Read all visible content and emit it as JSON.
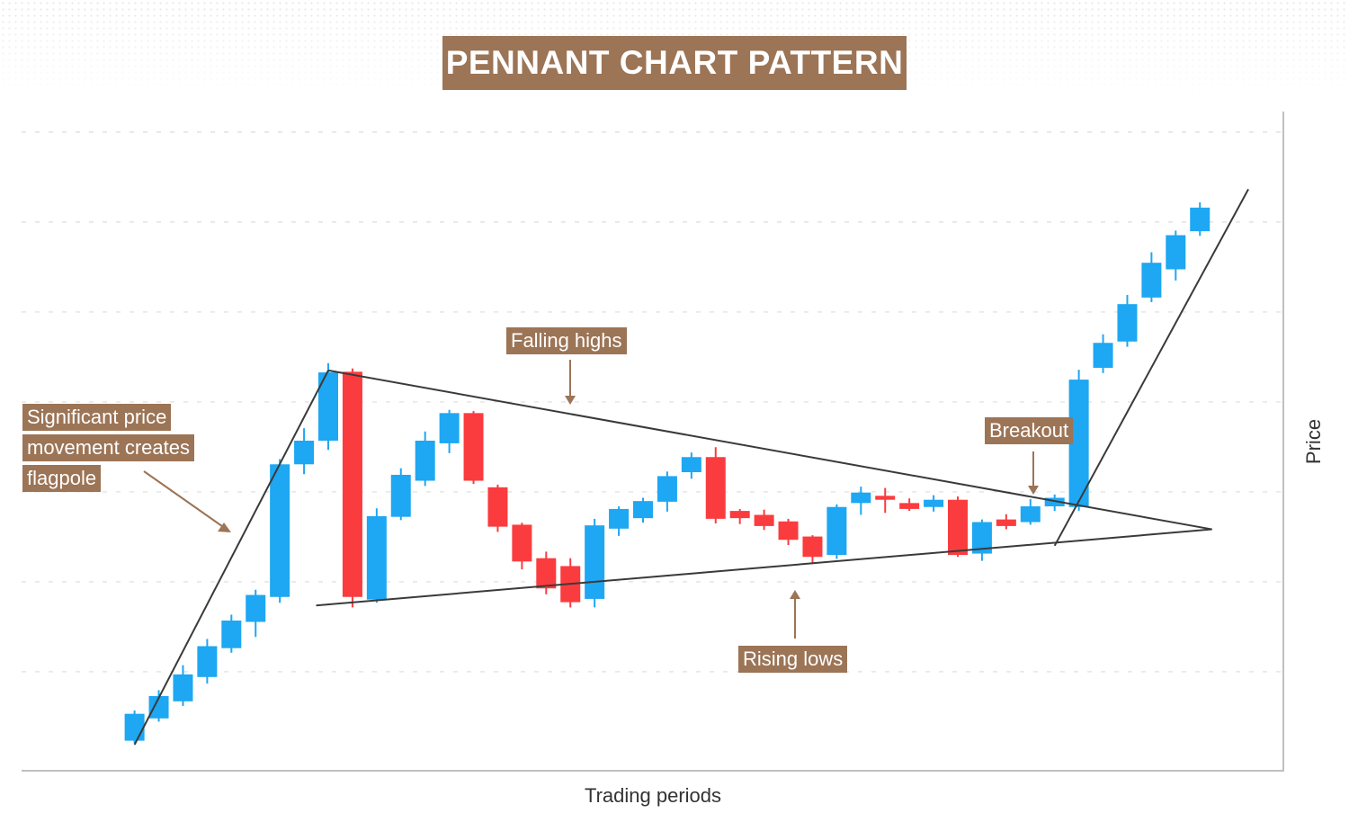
{
  "title": "PENNANT CHART PATTERN",
  "annotations": {
    "flagpole": [
      "Significant price",
      "movement creates",
      "flagpole"
    ],
    "falling_highs": "Falling highs",
    "rising_lows": "Rising lows",
    "breakout": "Breakout"
  },
  "colors": {
    "bullish": "#1ea7f2",
    "bearish": "#fa3c3f",
    "label_bg": "#9c7456",
    "trendline": "#3a3a3a",
    "grid": "#dcdcdc"
  },
  "chart_data": {
    "type": "candlestick",
    "xlabel": "Trading periods",
    "ylabel": "Price",
    "x_range": [
      0,
      52
    ],
    "y_range": [
      0,
      100
    ],
    "grid": "horizontal dashed",
    "candles": [
      {
        "x": 5,
        "open": 4.3,
        "close": 8.4,
        "high": 8.9,
        "low": 3.9
      },
      {
        "x": 6,
        "open": 7.7,
        "close": 11.1,
        "high": 12.0,
        "low": 7.2
      },
      {
        "x": 7,
        "open": 10.3,
        "close": 14.4,
        "high": 15.8,
        "low": 9.6
      },
      {
        "x": 8,
        "open": 14.0,
        "close": 18.7,
        "high": 19.8,
        "low": 13.0
      },
      {
        "x": 9,
        "open": 18.4,
        "close": 22.6,
        "high": 23.5,
        "low": 17.7
      },
      {
        "x": 10,
        "open": 22.4,
        "close": 26.5,
        "high": 27.3,
        "low": 20.1
      },
      {
        "x": 11,
        "open": 26.2,
        "close": 46.4,
        "high": 47.2,
        "low": 25.3
      },
      {
        "x": 12,
        "open": 46.4,
        "close": 50.0,
        "high": 51.9,
        "low": 44.9
      },
      {
        "x": 13,
        "open": 50.0,
        "close": 60.4,
        "high": 61.8,
        "low": 48.6
      },
      {
        "x": 14,
        "open": 60.5,
        "close": 26.2,
        "high": 61.0,
        "low": 24.6
      },
      {
        "x": 15,
        "open": 25.8,
        "close": 38.5,
        "high": 39.7,
        "low": 25.3
      },
      {
        "x": 16,
        "open": 38.4,
        "close": 44.8,
        "high": 45.8,
        "low": 37.9
      },
      {
        "x": 17,
        "open": 43.9,
        "close": 50.0,
        "high": 51.4,
        "low": 43.1
      },
      {
        "x": 18,
        "open": 49.6,
        "close": 54.2,
        "high": 54.7,
        "low": 48.1
      },
      {
        "x": 19,
        "open": 54.2,
        "close": 43.9,
        "high": 54.5,
        "low": 43.4
      },
      {
        "x": 20,
        "open": 42.9,
        "close": 36.9,
        "high": 43.3,
        "low": 36.1
      },
      {
        "x": 21,
        "open": 37.2,
        "close": 31.6,
        "high": 37.5,
        "low": 30.4
      },
      {
        "x": 22,
        "open": 32.1,
        "close": 27.5,
        "high": 33.1,
        "low": 26.6
      },
      {
        "x": 23,
        "open": 30.9,
        "close": 25.4,
        "high": 32.1,
        "low": 24.6
      },
      {
        "x": 24,
        "open": 25.9,
        "close": 37.1,
        "high": 38.1,
        "low": 24.6
      },
      {
        "x": 25,
        "open": 36.6,
        "close": 39.6,
        "high": 40.0,
        "low": 35.5
      },
      {
        "x": 26,
        "open": 38.2,
        "close": 40.8,
        "high": 41.3,
        "low": 37.5
      },
      {
        "x": 27,
        "open": 40.7,
        "close": 44.6,
        "high": 45.3,
        "low": 39.2
      },
      {
        "x": 28,
        "open": 45.2,
        "close": 47.5,
        "high": 48.2,
        "low": 44.2
      },
      {
        "x": 29,
        "open": 47.5,
        "close": 38.1,
        "high": 49.0,
        "low": 37.4
      },
      {
        "x": 30,
        "open": 39.3,
        "close": 38.2,
        "high": 39.6,
        "low": 37.3
      },
      {
        "x": 31,
        "open": 38.7,
        "close": 37.0,
        "high": 39.5,
        "low": 36.4
      },
      {
        "x": 32,
        "open": 37.7,
        "close": 34.9,
        "high": 38.1,
        "low": 34.1
      },
      {
        "x": 33,
        "open": 35.4,
        "close": 32.3,
        "high": 35.6,
        "low": 31.2
      },
      {
        "x": 34,
        "open": 32.6,
        "close": 39.9,
        "high": 40.3,
        "low": 32.0
      },
      {
        "x": 35,
        "open": 40.5,
        "close": 42.1,
        "high": 43.0,
        "low": 38.7
      },
      {
        "x": 36,
        "open": 41.6,
        "close": 41.0,
        "high": 42.8,
        "low": 39.0
      },
      {
        "x": 37,
        "open": 40.5,
        "close": 39.6,
        "high": 41.2,
        "low": 39.3
      },
      {
        "x": 38,
        "open": 39.9,
        "close": 41.0,
        "high": 41.7,
        "low": 39.2
      },
      {
        "x": 39,
        "open": 41.0,
        "close": 32.6,
        "high": 41.5,
        "low": 32.3
      },
      {
        "x": 40,
        "open": 32.8,
        "close": 37.6,
        "high": 38.0,
        "low": 31.7
      },
      {
        "x": 41,
        "open": 38.0,
        "close": 37.0,
        "high": 38.8,
        "low": 36.5
      },
      {
        "x": 42,
        "open": 37.6,
        "close": 40.0,
        "high": 41.1,
        "low": 37.2
      },
      {
        "x": 43,
        "open": 40.0,
        "close": 41.3,
        "high": 41.8,
        "low": 39.3
      },
      {
        "x": 44,
        "open": 39.9,
        "close": 59.3,
        "high": 60.8,
        "low": 39.3
      },
      {
        "x": 45,
        "open": 61.1,
        "close": 64.9,
        "high": 66.2,
        "low": 60.3
      },
      {
        "x": 46,
        "open": 65.1,
        "close": 70.8,
        "high": 72.2,
        "low": 64.3
      },
      {
        "x": 47,
        "open": 71.8,
        "close": 77.1,
        "high": 78.7,
        "low": 71.1
      },
      {
        "x": 48,
        "open": 76.1,
        "close": 81.3,
        "high": 82.0,
        "low": 74.4
      },
      {
        "x": 49,
        "open": 81.9,
        "close": 85.5,
        "high": 86.3,
        "low": 81.2
      }
    ],
    "trendlines": [
      {
        "role": "flagpole",
        "start": [
          5,
          3.7
        ],
        "end": [
          13,
          60.7
        ]
      },
      {
        "role": "falling_highs",
        "start": [
          13,
          60.7
        ],
        "end": [
          49.5,
          36.5
        ]
      },
      {
        "role": "rising_lows",
        "start": [
          12.5,
          24.9
        ],
        "end": [
          49.5,
          36.5
        ]
      },
      {
        "role": "breakout",
        "start": [
          43,
          34.0
        ],
        "end": [
          51,
          88.3
        ]
      }
    ]
  }
}
